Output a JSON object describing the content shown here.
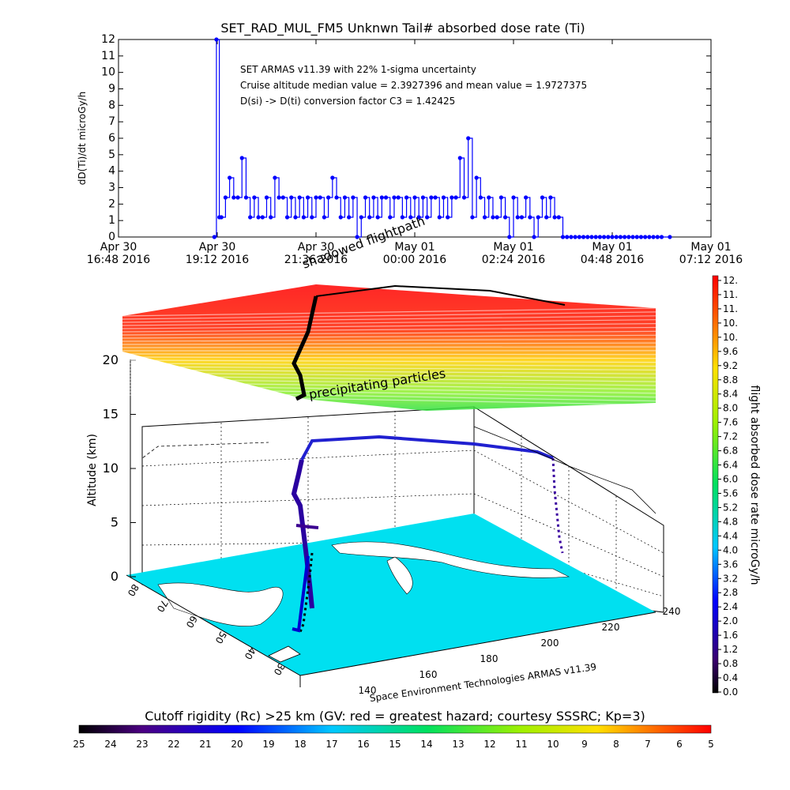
{
  "chart_data": [
    {
      "type": "line",
      "title": "SET_RAD_MUL_FM5 Unknwn Tail#  absorbed dose rate (Ti)",
      "ylabel": "dD(Ti)/dt microGy/h",
      "ylim": [
        0,
        12
      ],
      "y_ticks": [
        "0",
        "1",
        "2",
        "3",
        "4",
        "5",
        "6",
        "7",
        "8",
        "9",
        "10",
        "11",
        "12"
      ],
      "x_ticks": [
        {
          "l1": "Apr 30",
          "l2": "16:48 2016"
        },
        {
          "l1": "Apr 30",
          "l2": "19:12 2016"
        },
        {
          "l1": "Apr 30",
          "l2": "21:36 2016"
        },
        {
          "l1": "May 01",
          "l2": "00:00 2016"
        },
        {
          "l1": "May 01",
          "l2": "02:24 2016"
        },
        {
          "l1": "May 01",
          "l2": "04:48 2016"
        },
        {
          "l1": "May 01",
          "l2": "07:12 2016"
        }
      ],
      "xlim_hours": [
        0,
        14.4
      ],
      "annotations": [
        "SET ARMAS v11.39 with 22% 1-sigma uncertainty",
        "Cruise altitude median value = 2.3927396 and mean value = 1.9727375",
        "D(si) -> D(ti) conversion factor C3 = 1.42425"
      ],
      "series": [
        {
          "color": "#0000ff",
          "x_hours": [
            2.33,
            2.38,
            2.45,
            2.5,
            2.6,
            2.7,
            2.8,
            2.9,
            3.0,
            3.1,
            3.2,
            3.3,
            3.4,
            3.5,
            3.6,
            3.7,
            3.8,
            3.9,
            4.0,
            4.1,
            4.2,
            4.3,
            4.4,
            4.5,
            4.6,
            4.7,
            4.8,
            4.9,
            5.0,
            5.1,
            5.2,
            5.3,
            5.4,
            5.5,
            5.6,
            5.7,
            5.8,
            5.9,
            6.0,
            6.1,
            6.2,
            6.3,
            6.4,
            6.5,
            6.6,
            6.7,
            6.8,
            6.9,
            7.0,
            7.1,
            7.2,
            7.3,
            7.4,
            7.5,
            7.6,
            7.7,
            7.8,
            7.9,
            8.0,
            8.1,
            8.2,
            8.3,
            8.4,
            8.5,
            8.6,
            8.7,
            8.8,
            8.9,
            9.0,
            9.1,
            9.2,
            9.3,
            9.4,
            9.5,
            9.6,
            9.7,
            9.8,
            9.9,
            10.0,
            10.1,
            10.2,
            10.3,
            10.4,
            10.5,
            10.6,
            10.7,
            10.8,
            10.9,
            11.0,
            11.1,
            11.2,
            11.3,
            11.4,
            11.5,
            11.6,
            11.7,
            11.8,
            11.9,
            12.0,
            12.1,
            12.2,
            12.3,
            12.4,
            12.5,
            12.6,
            12.7,
            12.8,
            12.9,
            13.0,
            13.1,
            13.2,
            13.4
          ],
          "y": [
            0,
            12.0,
            1.2,
            1.2,
            2.4,
            3.6,
            2.4,
            2.4,
            4.8,
            2.4,
            1.2,
            2.4,
            1.2,
            1.2,
            2.4,
            1.2,
            3.6,
            2.4,
            2.4,
            1.2,
            2.4,
            1.2,
            2.4,
            1.2,
            2.4,
            1.2,
            2.4,
            2.4,
            1.2,
            2.4,
            3.6,
            2.4,
            1.2,
            2.4,
            1.2,
            2.4,
            0,
            1.2,
            2.4,
            1.2,
            2.4,
            1.2,
            2.4,
            2.4,
            1.2,
            2.4,
            2.4,
            1.2,
            2.4,
            1.2,
            2.4,
            1.2,
            2.4,
            1.2,
            2.4,
            2.4,
            1.2,
            2.4,
            1.2,
            2.4,
            2.4,
            4.8,
            2.4,
            6.0,
            1.2,
            3.6,
            2.4,
            1.2,
            2.4,
            1.2,
            1.2,
            2.4,
            1.2,
            0,
            2.4,
            1.2,
            1.2,
            2.4,
            1.2,
            0,
            1.2,
            2.4,
            1.2,
            2.4,
            1.2,
            1.2,
            0,
            0,
            0,
            0,
            0,
            0,
            0,
            0,
            0,
            0,
            0,
            0,
            0,
            0,
            0,
            0,
            0,
            0,
            0,
            0,
            0,
            0,
            0,
            0,
            0,
            0
          ]
        }
      ]
    },
    {
      "type": "3d-surface",
      "zlabel": "Altitude (km)",
      "z_ticks": [
        "0",
        "5",
        "10",
        "15",
        "20"
      ],
      "lat_ticks": [
        "30",
        "40",
        "50",
        "60",
        "70",
        "80"
      ],
      "lon_ticks": [
        "140",
        "160",
        "180",
        "200",
        "220",
        "240"
      ],
      "footer": "Space Environment Technologies ARMAS v11.39",
      "plane_labels": [
        "shadowed flightpath",
        "precipitating particles"
      ]
    }
  ],
  "colorbar_right": {
    "label": "flight absorbed dose rate microGy/h",
    "ticks": [
      "12.",
      "11.",
      "11.",
      "10.",
      "10.",
      "9.6",
      "9.2",
      "8.8",
      "8.4",
      "8.0",
      "7.6",
      "7.2",
      "6.8",
      "6.4",
      "6.0",
      "5.6",
      "5.2",
      "4.8",
      "4.4",
      "4.0",
      "3.6",
      "3.2",
      "2.8",
      "2.4",
      "2.0",
      "1.6",
      "1.2",
      "0.8",
      "0.4",
      "0.0"
    ]
  },
  "colorbar_bottom": {
    "label": "Cutoff rigidity (Rc) >25 km (GV: red = greatest hazard; courtesy SSSRC; Kp=3)",
    "ticks": [
      "25",
      "24",
      "23",
      "22",
      "21",
      "20",
      "19",
      "18",
      "17",
      "16",
      "15",
      "14",
      "13",
      "12",
      "11",
      "10",
      "9",
      "8",
      "7",
      "6",
      "5"
    ]
  }
}
